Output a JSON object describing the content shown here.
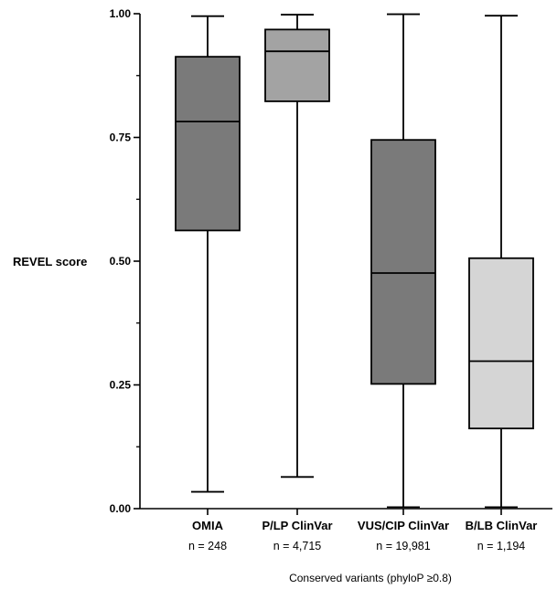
{
  "chart_data": {
    "type": "box",
    "ylabel": "REVEL score",
    "xlabel": "Conserved variants (phyloP ≥0.8)",
    "ylim": [
      0,
      1
    ],
    "yticks": [
      "0.00",
      "0.25",
      "0.50",
      "0.75",
      "1.00"
    ],
    "categories": [
      "OMIA",
      "P/LP ClinVar",
      "VUS/CIP ClinVar",
      "B/LB ClinVar"
    ],
    "counts": [
      "n = 248",
      "n = 4,715",
      "n = 19,981",
      "n = 1,194"
    ],
    "boxes": [
      {
        "category": "OMIA",
        "min": 0.034,
        "q1": 0.562,
        "median": 0.782,
        "q3": 0.913,
        "max": 0.995,
        "color": "#7a7a7a"
      },
      {
        "category": "P/LP ClinVar",
        "min": 0.064,
        "q1": 0.823,
        "median": 0.924,
        "q3": 0.968,
        "max": 0.998,
        "color": "#a3a3a3"
      },
      {
        "category": "VUS/CIP ClinVar",
        "min": 0.003,
        "q1": 0.252,
        "median": 0.476,
        "q3": 0.745,
        "max": 0.999,
        "color": "#7a7a7a"
      },
      {
        "category": "B/LB ClinVar",
        "min": 0.003,
        "q1": 0.162,
        "median": 0.298,
        "q3": 0.506,
        "max": 0.996,
        "color": "#d5d5d5"
      }
    ]
  }
}
